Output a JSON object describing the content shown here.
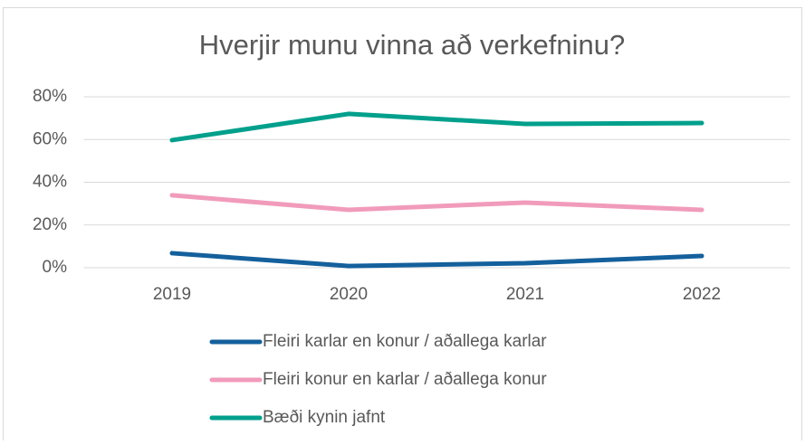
{
  "chart_data": {
    "type": "line",
    "title": "Hverjir munu vinna að verkefninu?",
    "categories": [
      "2019",
      "2020",
      "2021",
      "2022"
    ],
    "series": [
      {
        "name": "Fleiri karlar en konur / aðallega karlar",
        "color": "#14609c",
        "values": [
          6.8,
          0.8,
          2.1,
          5.5
        ]
      },
      {
        "name": "Fleiri konur en karlar / aðallega konur",
        "color": "#f19bbb",
        "values": [
          33.9,
          27.1,
          30.5,
          27.1
        ]
      },
      {
        "name": "Bæði kynin jafnt",
        "color": "#00a08c",
        "values": [
          59.7,
          72,
          67.3,
          67.7
        ]
      }
    ],
    "ylim": [
      0,
      80
    ],
    "yticks": [
      {
        "value": 0,
        "label": "0%"
      },
      {
        "value": 20,
        "label": "20%"
      },
      {
        "value": 40,
        "label": "40%"
      },
      {
        "value": 60,
        "label": "60%"
      },
      {
        "value": 80,
        "label": "80%"
      }
    ],
    "grid": true,
    "legend": "bottom"
  }
}
